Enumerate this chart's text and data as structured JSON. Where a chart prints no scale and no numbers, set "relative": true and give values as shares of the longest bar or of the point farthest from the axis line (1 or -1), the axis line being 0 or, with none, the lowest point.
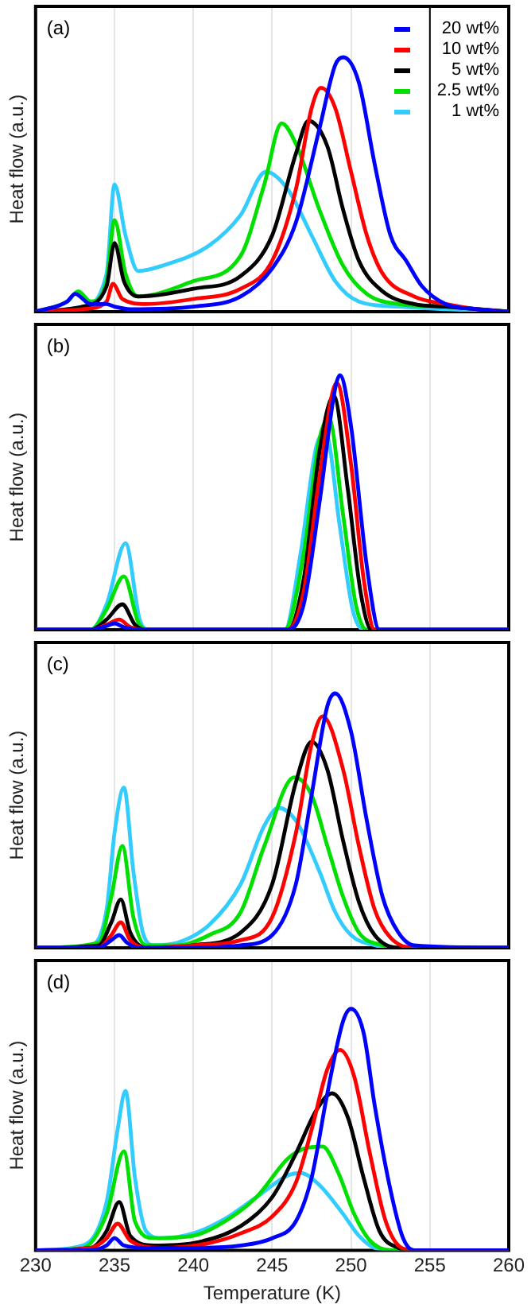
{
  "chart_data": [
    {
      "type": "line",
      "title": "(a)",
      "ylabel": "Heat flow (a.u.)",
      "relative": true,
      "xlim": [
        230,
        260
      ],
      "xticks": [
        230,
        235,
        240,
        245,
        250,
        255,
        260
      ],
      "tick_labels": false,
      "grid": "x",
      "legend": "top right",
      "ref_lines": [
        {
          "axis": "x",
          "value": 255,
          "color": "#000000"
        }
      ],
      "series": [
        {
          "name": "20 wt%",
          "color": "#0000ff",
          "x": [
            230,
            232,
            232.5,
            233.5,
            234.5,
            235,
            236,
            240,
            243,
            245,
            246.5,
            248,
            249,
            249.5,
            250.5,
            251.5,
            252.5,
            253.5,
            254.5,
            256,
            258,
            260
          ],
          "values": [
            0,
            0.04,
            0.07,
            0.03,
            0.03,
            0.02,
            0.01,
            0.02,
            0.06,
            0.17,
            0.35,
            0.72,
            0.97,
            1,
            0.9,
            0.58,
            0.3,
            0.2,
            0.1,
            0.03,
            0.01,
            0
          ]
        },
        {
          "name": "10 wt%",
          "color": "#ff0000",
          "x": [
            230,
            233,
            234.5,
            234.9,
            235.5,
            237,
            240,
            243,
            245,
            246.5,
            247.5,
            248.1,
            249,
            250,
            251,
            252,
            254,
            256,
            258,
            260
          ],
          "values": [
            0,
            0.01,
            0.04,
            0.11,
            0.05,
            0.03,
            0.05,
            0.09,
            0.2,
            0.48,
            0.8,
            0.88,
            0.8,
            0.55,
            0.3,
            0.15,
            0.06,
            0.03,
            0.01,
            0
          ]
        },
        {
          "name": "5 wt%",
          "color": "#000000",
          "x": [
            230,
            233,
            234.5,
            235,
            235.6,
            236.5,
            240,
            243,
            245,
            246.5,
            247.3,
            248.5,
            249.5,
            250.5,
            252,
            254,
            256,
            260
          ],
          "values": [
            0,
            0.02,
            0.1,
            0.27,
            0.12,
            0.06,
            0.09,
            0.14,
            0.3,
            0.62,
            0.75,
            0.65,
            0.4,
            0.2,
            0.08,
            0.03,
            0.02,
            0
          ]
        },
        {
          "name": "2.5 wt%",
          "color": "#00e000",
          "x": [
            230,
            232,
            232.7,
            233.5,
            234.5,
            235,
            235.7,
            236.5,
            240,
            243,
            244.5,
            245.6,
            246.5,
            248,
            249.5,
            251,
            253,
            256,
            258,
            260
          ],
          "values": [
            0,
            0.04,
            0.08,
            0.04,
            0.12,
            0.36,
            0.15,
            0.06,
            0.12,
            0.22,
            0.5,
            0.74,
            0.66,
            0.4,
            0.18,
            0.07,
            0.03,
            0.02,
            0.01,
            0
          ]
        },
        {
          "name": "1 wt%",
          "color": "#33ccff",
          "x": [
            230,
            233,
            234.5,
            235,
            235.7,
            236.5,
            238,
            241,
            243,
            244.6,
            246,
            247.5,
            249,
            250.5,
            253,
            256,
            260
          ],
          "values": [
            0,
            0.02,
            0.15,
            0.5,
            0.3,
            0.16,
            0.18,
            0.26,
            0.38,
            0.55,
            0.48,
            0.3,
            0.12,
            0.04,
            0.02,
            0.01,
            0
          ]
        }
      ]
    },
    {
      "type": "line",
      "title": "(b)",
      "ylabel": "Heat flow (a.u.)",
      "relative": true,
      "xlim": [
        230,
        260
      ],
      "xticks": [
        230,
        235,
        240,
        245,
        250,
        255,
        260
      ],
      "tick_labels": false,
      "grid": "x",
      "series": [
        {
          "color": "#0000ff",
          "x": [
            230,
            233.5,
            234.5,
            235,
            235.6,
            236.5,
            246,
            247,
            248,
            249,
            249.3,
            250,
            251,
            251.8,
            260
          ],
          "values": [
            0,
            0,
            0.015,
            0.025,
            0.01,
            0,
            0,
            0.1,
            0.5,
            0.95,
            1,
            0.8,
            0.25,
            0,
            0
          ]
        },
        {
          "color": "#ff0000",
          "x": [
            230,
            233.5,
            234.5,
            235.3,
            236,
            236.8,
            246,
            247,
            248,
            249.1,
            250,
            250.8,
            251.5,
            260
          ],
          "values": [
            0,
            0,
            0.02,
            0.04,
            0.01,
            0,
            0,
            0.15,
            0.6,
            0.97,
            0.65,
            0.2,
            0,
            0
          ]
        },
        {
          "color": "#000000",
          "x": [
            230,
            233.5,
            234.5,
            235.5,
            236.3,
            237,
            246,
            247,
            248,
            248.9,
            249.8,
            250.6,
            251.3,
            260
          ],
          "values": [
            0,
            0,
            0.04,
            0.1,
            0.02,
            0,
            0,
            0.2,
            0.7,
            0.92,
            0.55,
            0.15,
            0,
            0
          ]
        },
        {
          "color": "#00e000",
          "x": [
            230,
            233.5,
            234.5,
            235.6,
            236.5,
            237,
            245.8,
            247,
            248,
            248.6,
            249.5,
            250.3,
            251,
            260
          ],
          "values": [
            0,
            0,
            0.08,
            0.21,
            0.03,
            0,
            0,
            0.3,
            0.75,
            0.83,
            0.45,
            0.1,
            0,
            0
          ]
        },
        {
          "color": "#33ccff",
          "x": [
            230,
            233.5,
            234.5,
            235.7,
            236.6,
            237.2,
            245.8,
            246.8,
            247.8,
            248.4,
            249.3,
            250.1,
            250.8,
            260
          ],
          "values": [
            0,
            0,
            0.1,
            0.34,
            0.04,
            0,
            0,
            0.3,
            0.72,
            0.77,
            0.4,
            0.08,
            0,
            0
          ]
        }
      ]
    },
    {
      "type": "line",
      "title": "(c)",
      "ylabel": "Heat flow (a.u.)",
      "relative": true,
      "xlim": [
        230,
        260
      ],
      "xticks": [
        230,
        235,
        240,
        245,
        250,
        255,
        260
      ],
      "tick_labels": false,
      "grid": "x",
      "series": [
        {
          "color": "#0000ff",
          "x": [
            230,
            234,
            234.8,
            235.3,
            235.8,
            236.5,
            240,
            243,
            245,
            246.5,
            247.5,
            248.5,
            249,
            250,
            251,
            252,
            253,
            254,
            260
          ],
          "values": [
            0,
            0,
            0.03,
            0.05,
            0.02,
            0,
            0,
            0.01,
            0.05,
            0.25,
            0.6,
            0.95,
            1,
            0.85,
            0.5,
            0.2,
            0.06,
            0.01,
            0
          ]
        },
        {
          "color": "#ff0000",
          "x": [
            230,
            234,
            234.8,
            235.4,
            236,
            237,
            240,
            243,
            245,
            246.5,
            247.5,
            248.2,
            249.5,
            250.5,
            251.5,
            252.5,
            254,
            260
          ],
          "values": [
            0,
            0,
            0.05,
            0.1,
            0.03,
            0,
            0.01,
            0.03,
            0.12,
            0.45,
            0.8,
            0.91,
            0.7,
            0.4,
            0.15,
            0.04,
            0,
            0
          ]
        },
        {
          "color": "#000000",
          "x": [
            230,
            234,
            234.8,
            235.4,
            236,
            237,
            240,
            243,
            245,
            246.5,
            247.5,
            248.5,
            249.5,
            250.5,
            251.5,
            253,
            260
          ],
          "values": [
            0,
            0.01,
            0.1,
            0.19,
            0.06,
            0,
            0.01,
            0.06,
            0.25,
            0.65,
            0.81,
            0.7,
            0.42,
            0.18,
            0.05,
            0,
            0
          ]
        },
        {
          "color": "#00e000",
          "x": [
            230,
            234,
            234.8,
            235.5,
            236.2,
            237,
            239,
            241,
            243,
            244.5,
            246.4,
            247.5,
            248.5,
            249.5,
            250.5,
            252,
            253,
            260
          ],
          "values": [
            0,
            0.02,
            0.2,
            0.4,
            0.12,
            0.01,
            0.01,
            0.05,
            0.14,
            0.4,
            0.67,
            0.6,
            0.4,
            0.2,
            0.06,
            0.01,
            0,
            0
          ]
        },
        {
          "color": "#33ccff",
          "x": [
            230,
            233.5,
            234.5,
            235,
            235.6,
            236.2,
            236.8,
            237.5,
            239,
            241,
            243,
            244.5,
            245.4,
            246.5,
            248,
            249,
            250,
            251.5,
            253,
            260
          ],
          "values": [
            0,
            0.01,
            0.15,
            0.45,
            0.63,
            0.3,
            0.06,
            0.01,
            0.02,
            0.09,
            0.25,
            0.48,
            0.55,
            0.5,
            0.3,
            0.14,
            0.05,
            0.01,
            0,
            0
          ]
        }
      ]
    },
    {
      "type": "line",
      "title": "(d)",
      "ylabel": "Heat flow (a.u.)",
      "xlabel": "Temperature (K)",
      "relative": true,
      "xlim": [
        230,
        260
      ],
      "xticks": [
        230,
        235,
        240,
        245,
        250,
        255,
        260
      ],
      "tick_labels": "x",
      "grid": "x",
      "series": [
        {
          "color": "#0000ff",
          "x": [
            230,
            233.5,
            234.5,
            235,
            235.6,
            237,
            240,
            243,
            245,
            246.5,
            247.5,
            248.5,
            249.5,
            250,
            250.8,
            251.5,
            252.5,
            253.3,
            254,
            260
          ],
          "values": [
            0,
            0,
            0.02,
            0.05,
            0.02,
            0.01,
            0.01,
            0.02,
            0.05,
            0.12,
            0.3,
            0.65,
            0.95,
            1,
            0.9,
            0.6,
            0.25,
            0.05,
            0,
            0
          ]
        },
        {
          "color": "#ff0000",
          "x": [
            230,
            233.5,
            234.5,
            235.2,
            236,
            238,
            241,
            243,
            245,
            246.5,
            247.5,
            248.5,
            249.3,
            250.2,
            251.2,
            252.2,
            253.2,
            254,
            260
          ],
          "values": [
            0,
            0.01,
            0.05,
            0.11,
            0.04,
            0.01,
            0.03,
            0.07,
            0.14,
            0.28,
            0.5,
            0.75,
            0.83,
            0.72,
            0.4,
            0.12,
            0.01,
            0,
            0
          ]
        },
        {
          "color": "#000000",
          "x": [
            230,
            233.5,
            234.5,
            235.3,
            236,
            237.5,
            240,
            243,
            245,
            246.5,
            247.8,
            248.8,
            249.8,
            250.8,
            251.8,
            253,
            254,
            260
          ],
          "values": [
            0,
            0.01,
            0.08,
            0.2,
            0.06,
            0.02,
            0.03,
            0.1,
            0.22,
            0.4,
            0.58,
            0.65,
            0.55,
            0.3,
            0.08,
            0.01,
            0,
            0
          ]
        },
        {
          "color": "#00e000",
          "x": [
            230,
            233,
            234.5,
            235.6,
            236.3,
            237.5,
            240,
            242,
            244,
            246,
            247,
            248.2,
            249.2,
            250.2,
            251.2,
            252.5,
            260
          ],
          "values": [
            0,
            0.01,
            0.15,
            0.41,
            0.12,
            0.05,
            0.06,
            0.12,
            0.22,
            0.38,
            0.42,
            0.43,
            0.32,
            0.15,
            0.04,
            0,
            0
          ]
        },
        {
          "color": "#33ccff",
          "x": [
            230,
            233,
            234.5,
            235.2,
            235.7,
            236.3,
            237,
            238,
            240,
            242,
            244,
            246,
            246.8,
            248,
            249.5,
            250.5,
            251.5,
            253,
            260
          ],
          "values": [
            0,
            0.02,
            0.2,
            0.5,
            0.66,
            0.3,
            0.08,
            0.05,
            0.07,
            0.13,
            0.22,
            0.31,
            0.32,
            0.27,
            0.15,
            0.06,
            0.01,
            0,
            0
          ]
        }
      ]
    }
  ]
}
